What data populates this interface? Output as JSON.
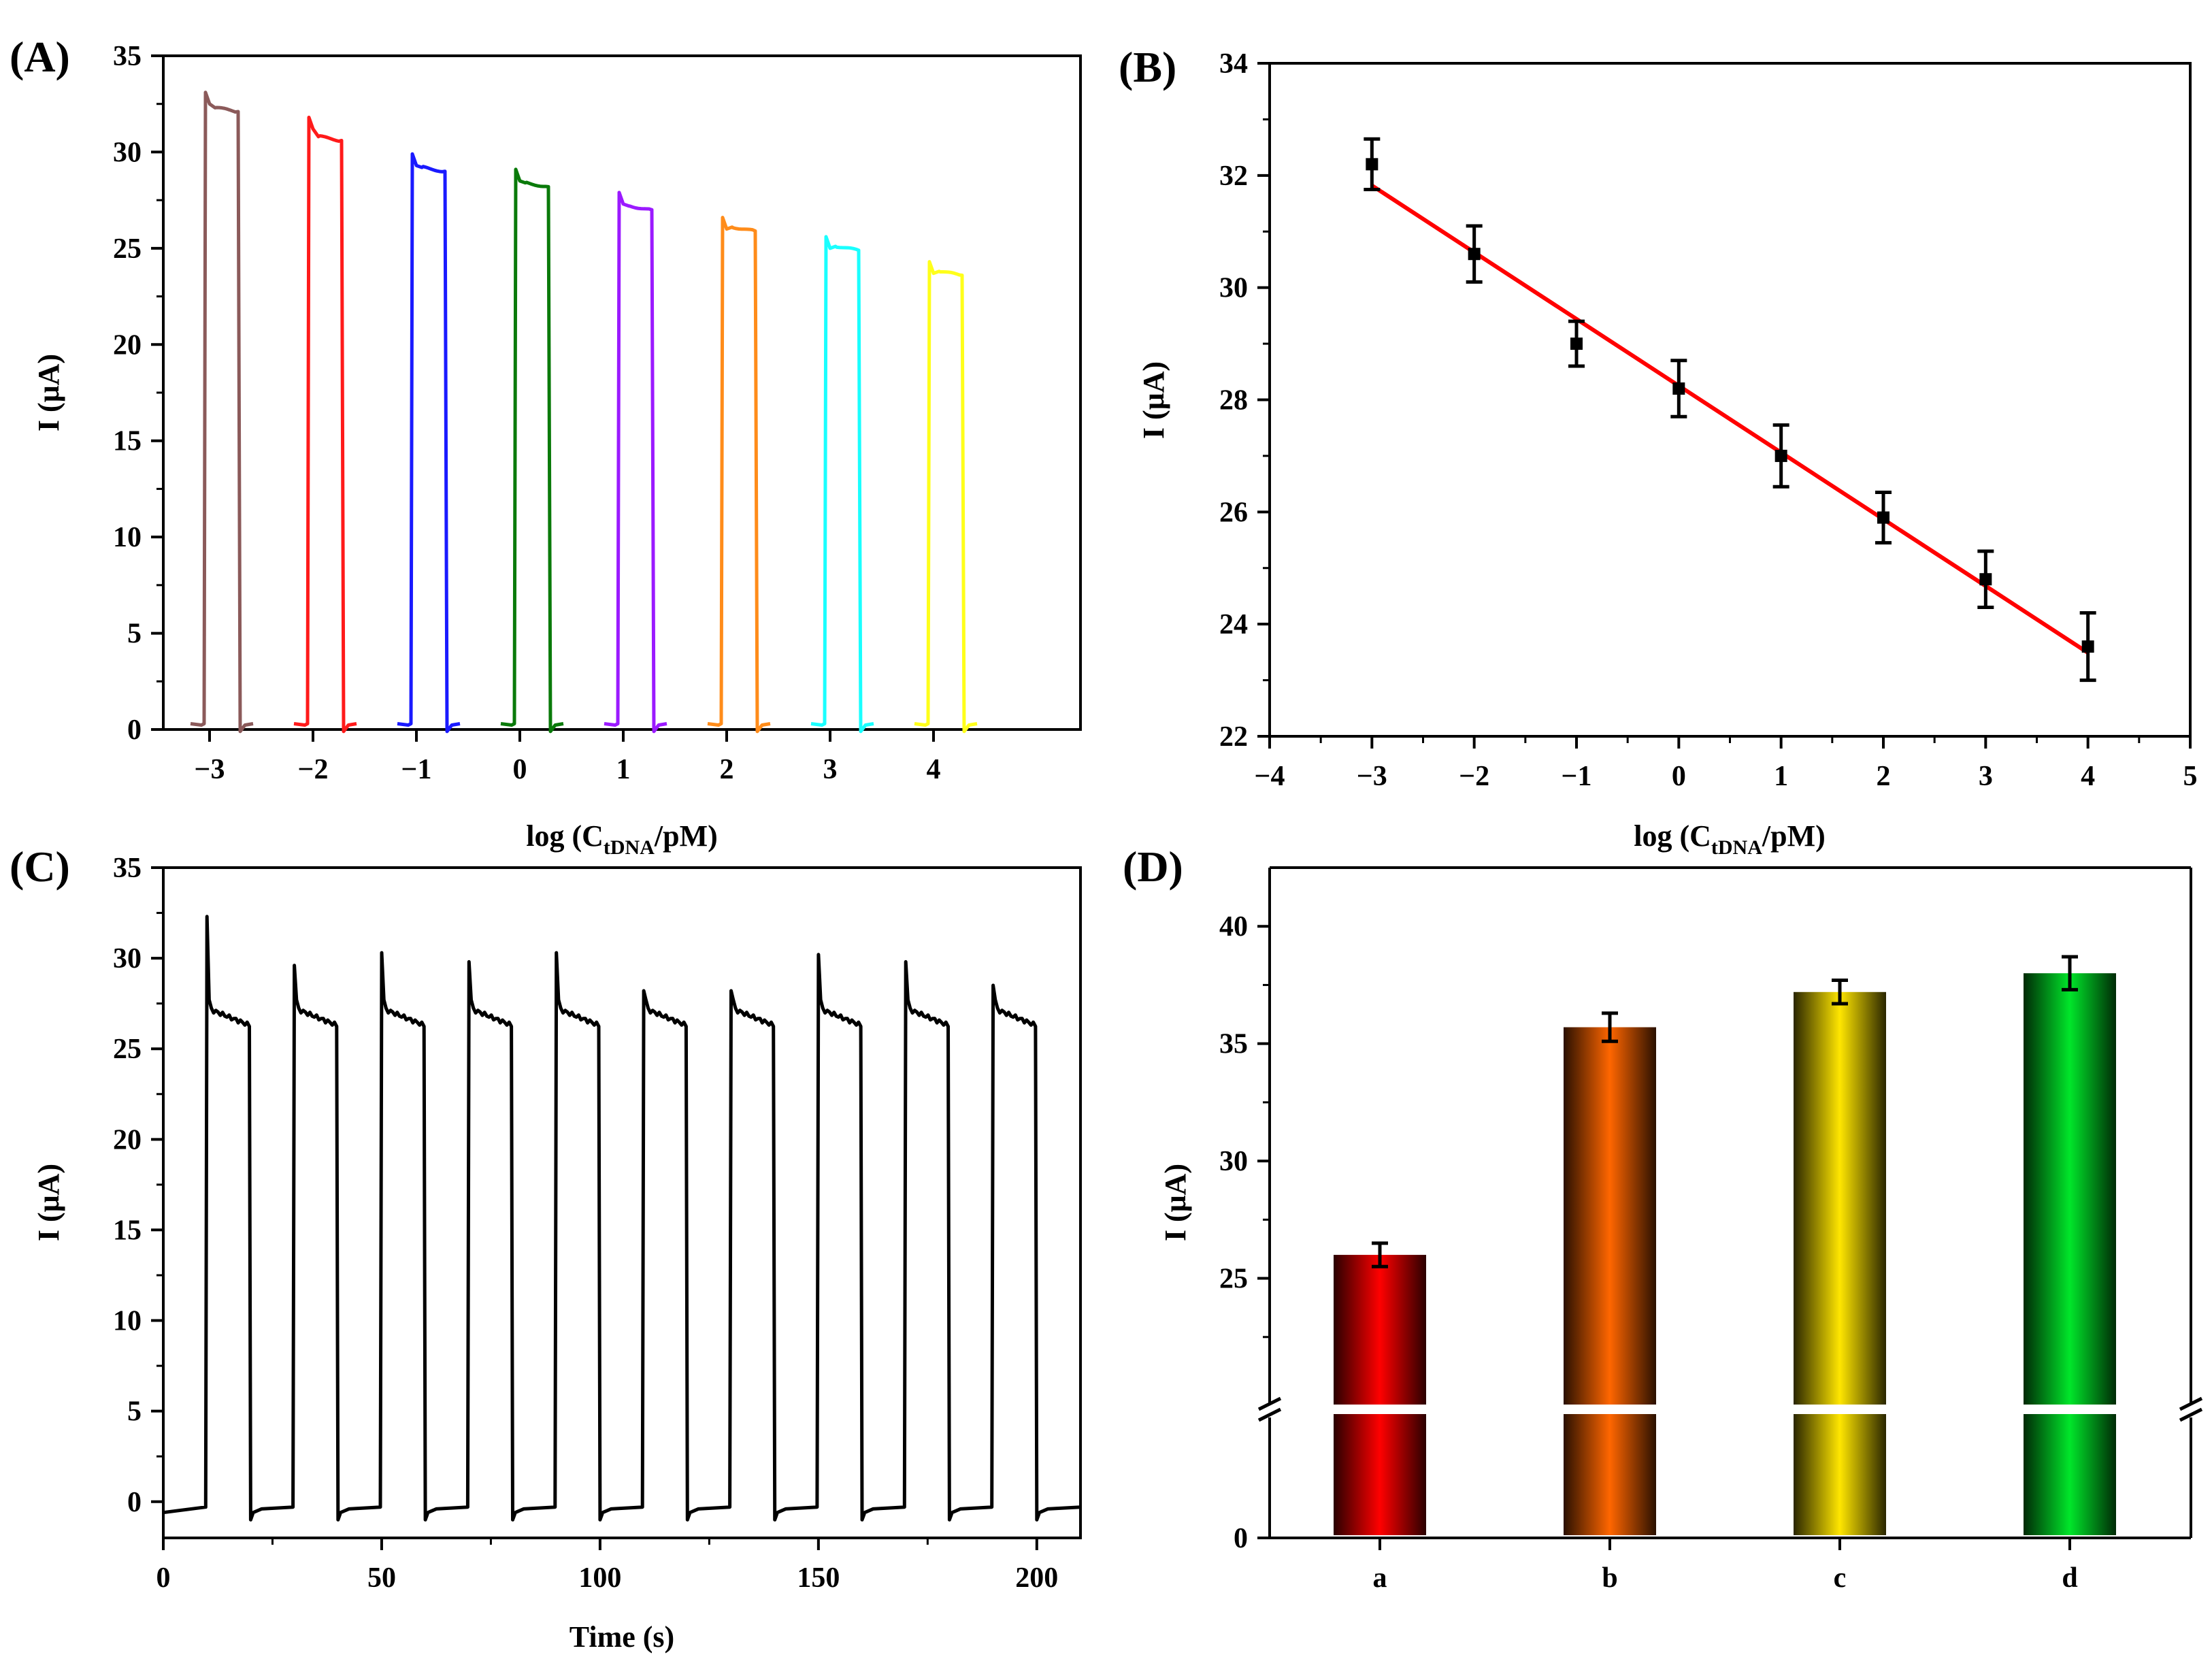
{
  "chart_data": [
    {
      "panel": "(A)",
      "type": "line",
      "xlabel": "log (C",
      "xlabel_sub": "tDNA",
      "xlabel_tail": "/pM)",
      "ylabel": "I (μA)",
      "ylim": [
        0,
        35
      ],
      "yticks": [
        "0",
        "5",
        "10",
        "15",
        "20",
        "25",
        "30",
        "35"
      ],
      "categories": [
        "−3",
        "−2",
        "−1",
        "0",
        "1",
        "2",
        "3",
        "4"
      ],
      "series": [
        {
          "name": "−3",
          "color": "#8B5A5A",
          "base": 0.3,
          "peak": 33.1,
          "plateau": 32.1
        },
        {
          "name": "−2",
          "color": "#FF1A1A",
          "base": 0.3,
          "peak": 31.8,
          "plateau": 30.6
        },
        {
          "name": "−1",
          "color": "#1A1AFF",
          "base": 0.3,
          "peak": 29.9,
          "plateau": 29.0
        },
        {
          "name": "0",
          "color": "#0A7A0A",
          "base": 0.3,
          "peak": 29.1,
          "plateau": 28.2
        },
        {
          "name": "1",
          "color": "#9B1AFF",
          "base": 0.3,
          "peak": 27.9,
          "plateau": 27.0
        },
        {
          "name": "2",
          "color": "#FF8C1A",
          "base": 0.3,
          "peak": 26.6,
          "plateau": 25.9
        },
        {
          "name": "3",
          "color": "#1AFFFF",
          "base": 0.3,
          "peak": 25.6,
          "plateau": 24.9
        },
        {
          "name": "4",
          "color": "#FFFF1A",
          "base": 0.3,
          "peak": 24.3,
          "plateau": 23.6
        }
      ]
    },
    {
      "panel": "(B)",
      "type": "scatter",
      "xlabel": "log (C",
      "xlabel_sub": "tDNA",
      "xlabel_tail": "/pM)",
      "ylabel": "I (μA)",
      "xlim": [
        -4,
        5
      ],
      "ylim": [
        22,
        34
      ],
      "xticks": [
        "−4",
        "−3",
        "−2",
        "−1",
        "0",
        "1",
        "2",
        "3",
        "4",
        "5"
      ],
      "yticks": [
        "22",
        "24",
        "26",
        "28",
        "30",
        "32",
        "34"
      ],
      "x": [
        -3,
        -2,
        -1,
        0,
        1,
        2,
        3,
        4
      ],
      "y": [
        32.2,
        30.6,
        29.0,
        28.2,
        27.0,
        25.9,
        24.8,
        23.6
      ],
      "err": [
        0.45,
        0.5,
        0.4,
        0.5,
        0.55,
        0.45,
        0.5,
        0.6
      ],
      "fit": {
        "slope": -1.19,
        "intercept": 28.25,
        "color": "#FF0000"
      }
    },
    {
      "panel": "(C)",
      "type": "line",
      "xlabel": "Time (s)",
      "ylabel": "I (μA)",
      "xlim": [
        0,
        210
      ],
      "ylim": [
        -2,
        35
      ],
      "xticks": [
        "0",
        "50",
        "100",
        "150",
        "200"
      ],
      "yticks": [
        "0",
        "5",
        "10",
        "15",
        "20",
        "25",
        "30",
        "35"
      ],
      "on_times": [
        10,
        30,
        50,
        70,
        90,
        110,
        130,
        150,
        170,
        190
      ],
      "on_duration": 10,
      "base": -0.3,
      "peaks": [
        32.3,
        29.6,
        30.3,
        29.8,
        30.3,
        28.2,
        28.2,
        30.2,
        29.8,
        28.5
      ],
      "plateau_start": 27.2,
      "plateau_end": 26.3,
      "undershoot": -1.0,
      "color": "#000000"
    },
    {
      "panel": "(D)",
      "type": "bar",
      "ylabel": "I (μA)",
      "categories": [
        "a",
        "b",
        "c",
        "d"
      ],
      "values": [
        26.0,
        35.7,
        37.2,
        38.0
      ],
      "err": [
        0.5,
        0.6,
        0.5,
        0.7
      ],
      "colors": [
        "#FF0000",
        "#FF6600",
        "#FFE600",
        "#00E62A"
      ],
      "yticks": [
        "0",
        "25",
        "30",
        "35",
        "40"
      ],
      "ylim_upper": [
        20,
        42.5
      ],
      "axis_break": true
    }
  ]
}
